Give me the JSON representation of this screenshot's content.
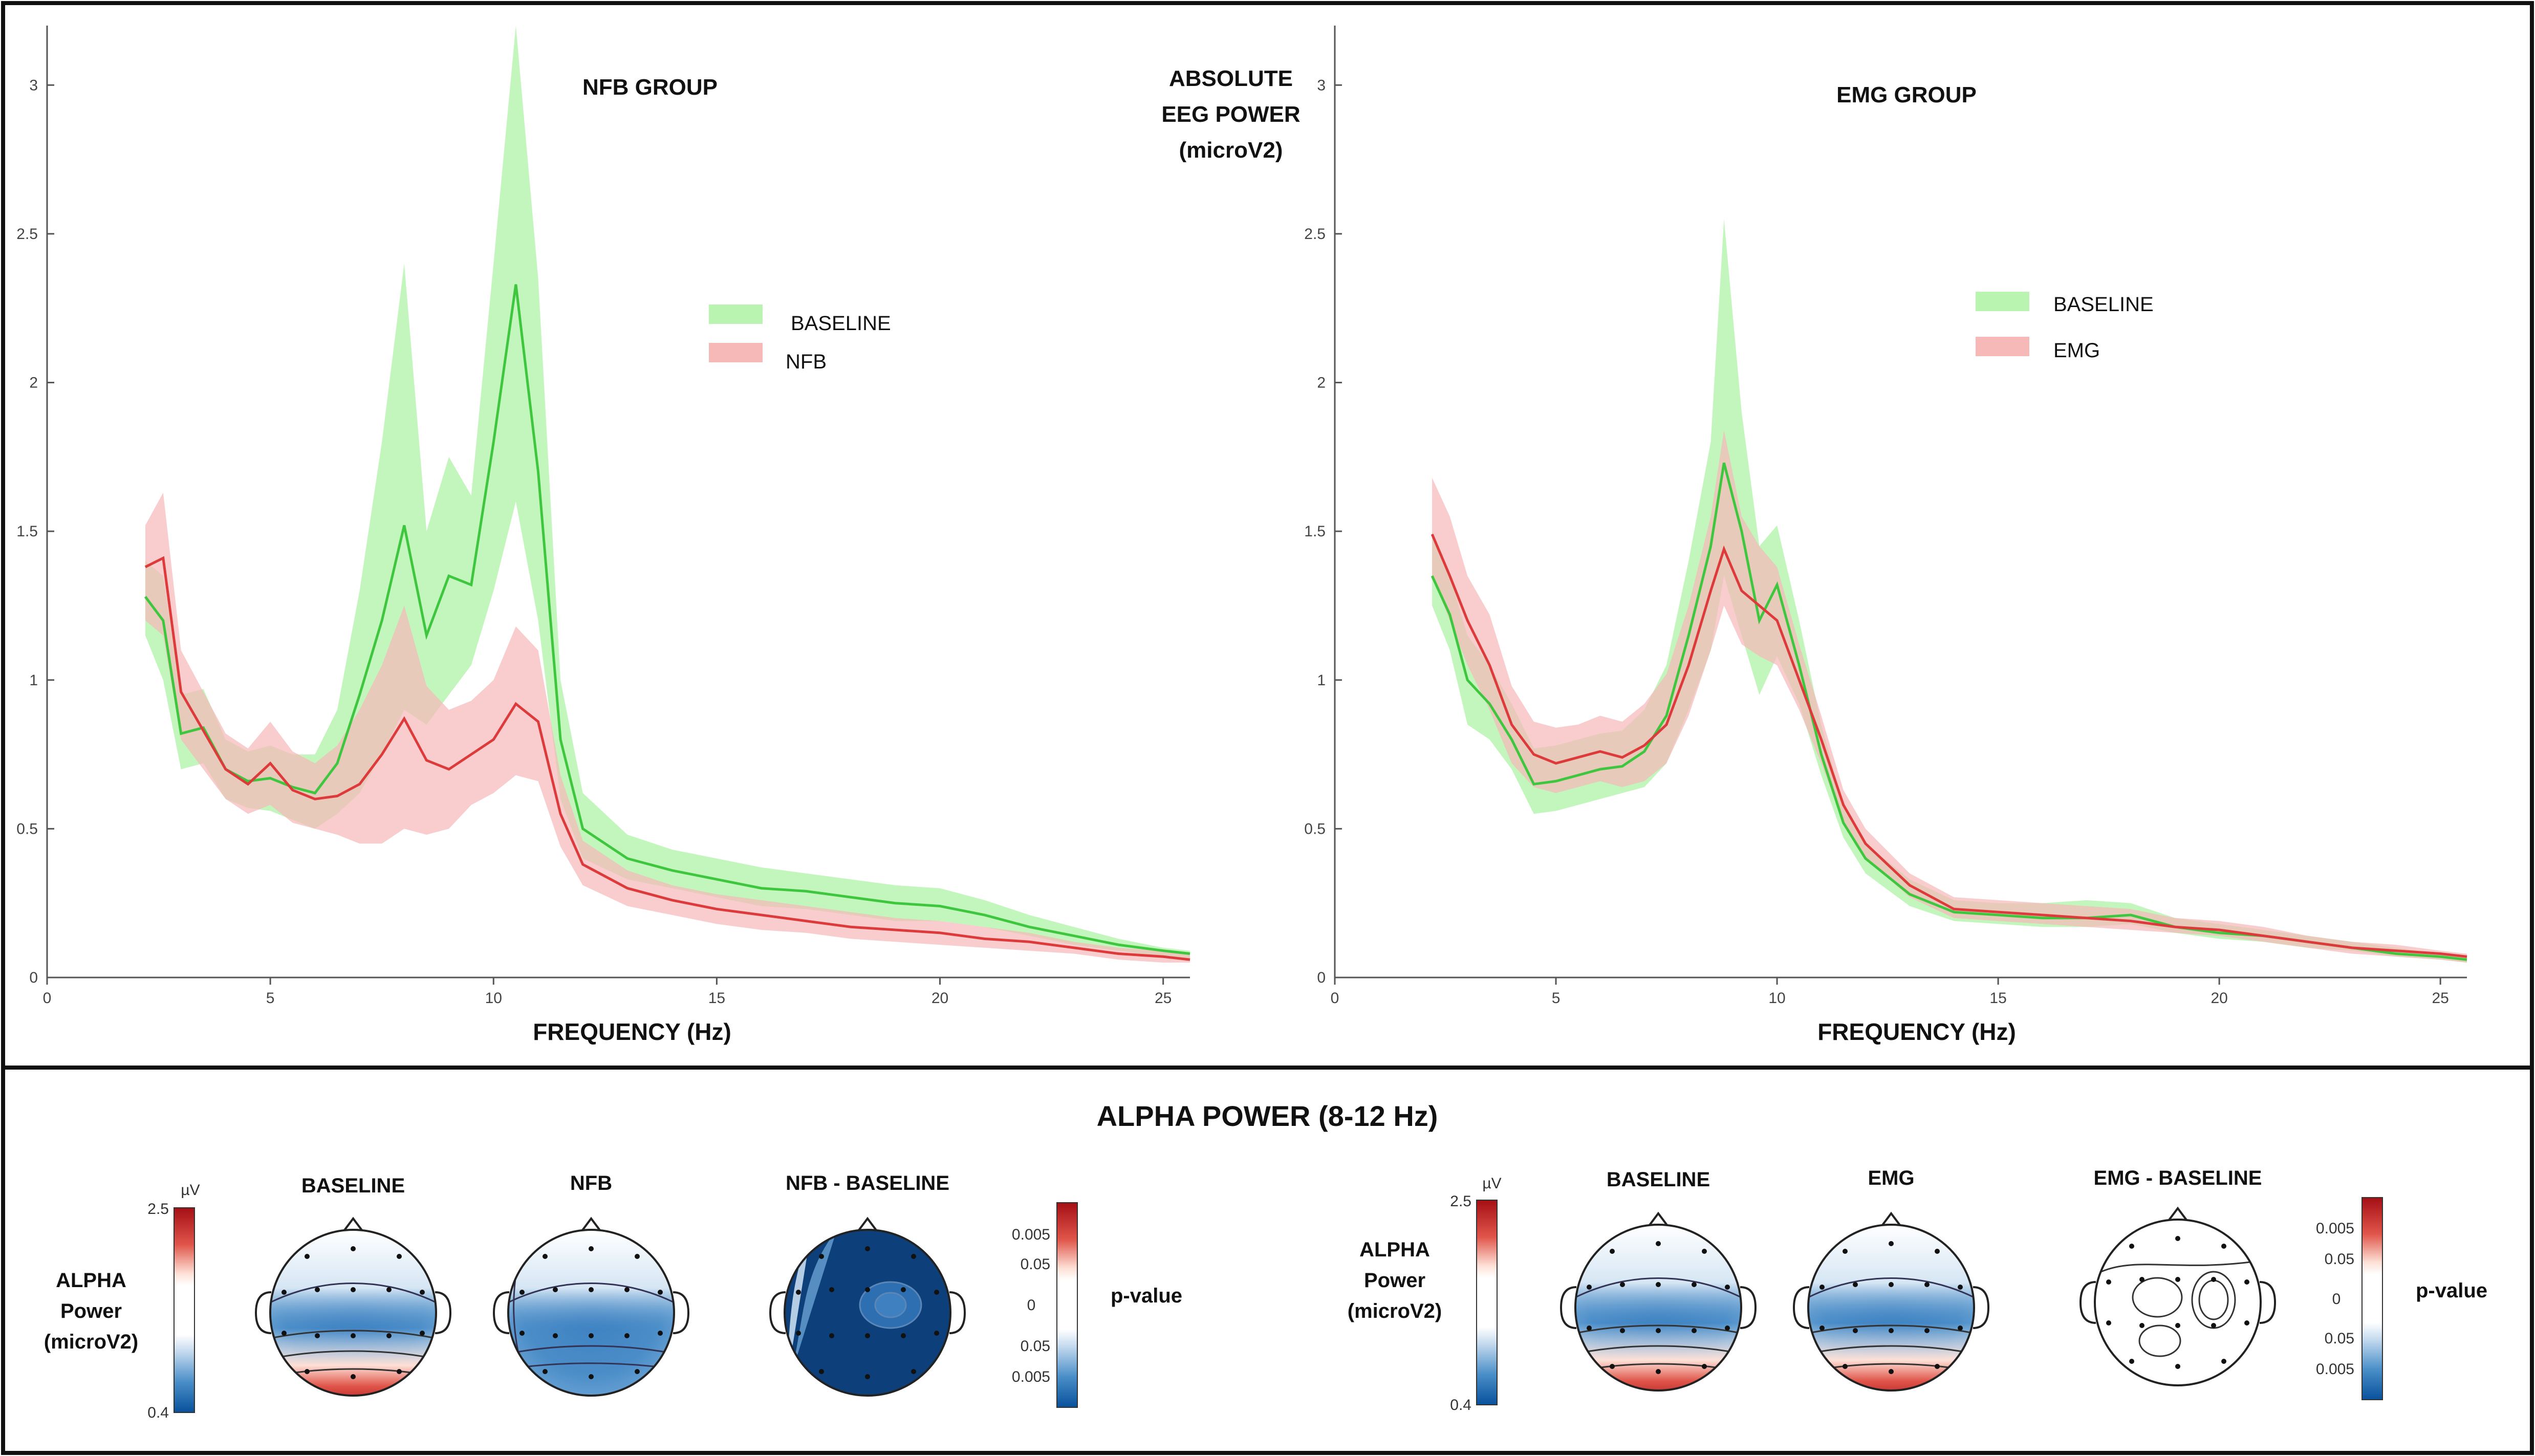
{
  "colors": {
    "baseline_line": "#3ec63e",
    "baseline_fill": "#b9f5b1",
    "test_line": "#dd3b3b",
    "test_fill": "#f7b8b8",
    "frame": "#111111"
  },
  "center_label": [
    "ABSOLUTE",
    "EEG POWER",
    "(microV2)"
  ],
  "chart_data": [
    {
      "type": "line",
      "title": "NFB GROUP",
      "xlabel": "FREQUENCY (Hz)",
      "ylabel": "ABSOLUTE EEG POWER (microV2)",
      "xlim": [
        0,
        25.6
      ],
      "ylim": [
        0,
        3.2
      ],
      "xticks": [
        0,
        5,
        10,
        15,
        20,
        25
      ],
      "yticks": [
        0,
        0.5,
        1,
        1.5,
        2,
        2.5,
        3
      ],
      "legend_position": "center-right",
      "x": [
        2.2,
        2.6,
        3.0,
        3.5,
        4.0,
        4.5,
        5.0,
        5.5,
        6.0,
        6.5,
        7.0,
        7.5,
        8.0,
        8.5,
        9.0,
        9.5,
        10.0,
        10.5,
        11.0,
        11.5,
        12.0,
        13.0,
        14.0,
        15.0,
        16.0,
        17.0,
        18.0,
        19.0,
        20.0,
        21.0,
        22.0,
        23.0,
        24.0,
        25.0,
        25.6
      ],
      "series": [
        {
          "name": "BASELINE",
          "mean": [
            1.28,
            1.2,
            0.82,
            0.84,
            0.7,
            0.66,
            0.67,
            0.64,
            0.62,
            0.72,
            0.95,
            1.2,
            1.52,
            1.15,
            1.35,
            1.32,
            1.8,
            2.33,
            1.7,
            0.8,
            0.5,
            0.4,
            0.36,
            0.33,
            0.3,
            0.29,
            0.27,
            0.25,
            0.24,
            0.21,
            0.17,
            0.14,
            0.11,
            0.09,
            0.08
          ],
          "lower": [
            1.15,
            1.0,
            0.7,
            0.72,
            0.6,
            0.57,
            0.56,
            0.53,
            0.5,
            0.55,
            0.62,
            0.75,
            0.9,
            0.85,
            0.95,
            1.05,
            1.3,
            1.6,
            1.2,
            0.6,
            0.4,
            0.33,
            0.3,
            0.27,
            0.24,
            0.23,
            0.21,
            0.19,
            0.19,
            0.17,
            0.14,
            0.11,
            0.09,
            0.07,
            0.06
          ],
          "upper": [
            1.4,
            1.35,
            0.95,
            0.97,
            0.8,
            0.76,
            0.78,
            0.75,
            0.75,
            0.9,
            1.3,
            1.8,
            2.4,
            1.5,
            1.75,
            1.62,
            2.4,
            3.2,
            2.35,
            1.0,
            0.62,
            0.48,
            0.43,
            0.4,
            0.37,
            0.35,
            0.33,
            0.31,
            0.3,
            0.26,
            0.21,
            0.17,
            0.13,
            0.1,
            0.09
          ]
        },
        {
          "name": "NFB",
          "mean": [
            1.38,
            1.41,
            0.96,
            0.83,
            0.7,
            0.65,
            0.72,
            0.63,
            0.6,
            0.61,
            0.65,
            0.75,
            0.87,
            0.73,
            0.7,
            0.75,
            0.8,
            0.92,
            0.86,
            0.55,
            0.38,
            0.3,
            0.26,
            0.23,
            0.21,
            0.19,
            0.17,
            0.16,
            0.15,
            0.13,
            0.12,
            0.1,
            0.08,
            0.07,
            0.06
          ],
          "lower": [
            1.2,
            1.15,
            0.8,
            0.7,
            0.6,
            0.55,
            0.58,
            0.52,
            0.5,
            0.48,
            0.45,
            0.45,
            0.5,
            0.48,
            0.5,
            0.58,
            0.62,
            0.68,
            0.66,
            0.44,
            0.31,
            0.24,
            0.21,
            0.18,
            0.16,
            0.15,
            0.13,
            0.12,
            0.11,
            0.1,
            0.09,
            0.08,
            0.06,
            0.05,
            0.05
          ],
          "upper": [
            1.52,
            1.63,
            1.1,
            0.96,
            0.82,
            0.77,
            0.86,
            0.76,
            0.72,
            0.78,
            0.9,
            1.05,
            1.25,
            0.98,
            0.9,
            0.93,
            1.0,
            1.18,
            1.1,
            0.68,
            0.46,
            0.36,
            0.31,
            0.28,
            0.26,
            0.24,
            0.22,
            0.2,
            0.19,
            0.17,
            0.15,
            0.12,
            0.1,
            0.09,
            0.08
          ]
        }
      ]
    },
    {
      "type": "line",
      "title": "EMG GROUP",
      "xlabel": "FREQUENCY (Hz)",
      "ylabel": "ABSOLUTE EEG POWER (microV2)",
      "xlim": [
        0,
        25.6
      ],
      "ylim": [
        0,
        3.2
      ],
      "xticks": [
        0,
        5,
        10,
        15,
        20,
        25
      ],
      "yticks": [
        0,
        0.5,
        1,
        1.5,
        2,
        2.5,
        3
      ],
      "legend_position": "top-right",
      "x": [
        2.2,
        2.6,
        3.0,
        3.5,
        4.0,
        4.5,
        5.0,
        5.5,
        6.0,
        6.5,
        7.0,
        7.5,
        8.0,
        8.5,
        8.8,
        9.2,
        9.6,
        10.0,
        10.5,
        11.0,
        11.5,
        12.0,
        13.0,
        14.0,
        15.0,
        16.0,
        17.0,
        18.0,
        19.0,
        20.0,
        21.0,
        22.0,
        23.0,
        24.0,
        25.0,
        25.6
      ],
      "series": [
        {
          "name": "BASELINE",
          "mean": [
            1.35,
            1.22,
            1.0,
            0.92,
            0.8,
            0.65,
            0.66,
            0.68,
            0.7,
            0.71,
            0.76,
            0.88,
            1.15,
            1.45,
            1.73,
            1.5,
            1.2,
            1.32,
            1.05,
            0.75,
            0.52,
            0.4,
            0.28,
            0.22,
            0.21,
            0.2,
            0.2,
            0.21,
            0.17,
            0.15,
            0.14,
            0.12,
            0.1,
            0.08,
            0.07,
            0.06
          ],
          "lower": [
            1.25,
            1.1,
            0.85,
            0.8,
            0.7,
            0.55,
            0.56,
            0.58,
            0.6,
            0.62,
            0.64,
            0.72,
            0.9,
            1.1,
            1.35,
            1.15,
            0.95,
            1.08,
            0.92,
            0.68,
            0.47,
            0.35,
            0.24,
            0.19,
            0.18,
            0.17,
            0.17,
            0.18,
            0.15,
            0.13,
            0.12,
            0.1,
            0.09,
            0.07,
            0.06,
            0.05
          ],
          "upper": [
            1.5,
            1.35,
            1.15,
            1.05,
            0.92,
            0.77,
            0.78,
            0.8,
            0.82,
            0.83,
            0.9,
            1.05,
            1.4,
            1.8,
            2.55,
            1.9,
            1.45,
            1.52,
            1.2,
            0.85,
            0.58,
            0.45,
            0.33,
            0.26,
            0.25,
            0.25,
            0.26,
            0.25,
            0.2,
            0.18,
            0.16,
            0.14,
            0.12,
            0.1,
            0.08,
            0.07
          ]
        },
        {
          "name": "EMG",
          "mean": [
            1.49,
            1.35,
            1.2,
            1.05,
            0.85,
            0.75,
            0.72,
            0.74,
            0.76,
            0.74,
            0.78,
            0.85,
            1.05,
            1.3,
            1.44,
            1.3,
            1.25,
            1.2,
            1.0,
            0.8,
            0.58,
            0.45,
            0.31,
            0.23,
            0.22,
            0.21,
            0.2,
            0.19,
            0.17,
            0.16,
            0.14,
            0.12,
            0.1,
            0.09,
            0.08,
            0.07
          ],
          "lower": [
            1.35,
            1.2,
            1.05,
            0.9,
            0.72,
            0.64,
            0.62,
            0.64,
            0.66,
            0.64,
            0.66,
            0.72,
            0.88,
            1.1,
            1.25,
            1.12,
            1.08,
            1.05,
            0.9,
            0.72,
            0.52,
            0.4,
            0.27,
            0.2,
            0.19,
            0.18,
            0.17,
            0.16,
            0.15,
            0.14,
            0.12,
            0.1,
            0.08,
            0.07,
            0.06,
            0.05
          ],
          "upper": [
            1.68,
            1.55,
            1.35,
            1.22,
            0.98,
            0.86,
            0.84,
            0.85,
            0.88,
            0.86,
            0.92,
            1.02,
            1.25,
            1.55,
            1.84,
            1.55,
            1.45,
            1.38,
            1.12,
            0.88,
            0.63,
            0.5,
            0.35,
            0.27,
            0.26,
            0.25,
            0.24,
            0.23,
            0.2,
            0.19,
            0.17,
            0.14,
            0.12,
            0.11,
            0.09,
            0.08
          ]
        }
      ]
    }
  ],
  "alpha": {
    "title": "ALPHA POWER (8-12 Hz)",
    "groups": [
      {
        "power_label": [
          "ALPHA",
          "Power",
          "(microV2)"
        ],
        "colorbar": {
          "unit": "µV",
          "max": "2.5",
          "min": "0.4"
        },
        "heads": [
          {
            "title": "BASELINE",
            "posterior_red": true,
            "dark": false,
            "white": false
          },
          {
            "title": "NFB",
            "posterior_red": false,
            "dark": false,
            "white": false
          },
          {
            "title": "NFB - BASELINE",
            "posterior_red": false,
            "dark": true,
            "white": false
          }
        ],
        "pbar": {
          "ticks": [
            "0.005",
            "0.05",
            "0",
            "0.05",
            "0.005"
          ],
          "label": "p-value"
        }
      },
      {
        "power_label": [
          "ALPHA",
          "Power",
          "(microV2)"
        ],
        "colorbar": {
          "unit": "µV",
          "max": "2.5",
          "min": "0.4"
        },
        "heads": [
          {
            "title": "BASELINE",
            "posterior_red": true,
            "dark": false,
            "white": false
          },
          {
            "title": "EMG",
            "posterior_red": true,
            "dark": false,
            "white": false
          },
          {
            "title": "EMG - BASELINE",
            "posterior_red": false,
            "dark": false,
            "white": true
          }
        ],
        "pbar": {
          "ticks": [
            "0.005",
            "0.05",
            "0",
            "0.05",
            "0.005"
          ],
          "label": "p-value"
        }
      }
    ]
  }
}
